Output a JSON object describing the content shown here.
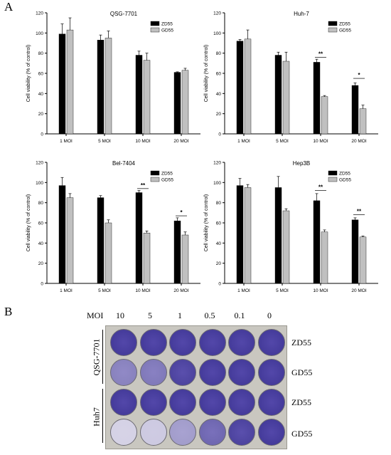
{
  "panels": {
    "a_label": "A",
    "b_label": "B"
  },
  "chart_data": [
    {
      "type": "bar",
      "title": "QSG-7701",
      "ylabel": "Cell viability (% of control)",
      "xlabel": "",
      "categories": [
        "1 MOI",
        "5 MOI",
        "10 MOI",
        "20 MOI"
      ],
      "ylim": [
        0,
        120
      ],
      "yticks": [
        0,
        20,
        40,
        60,
        80,
        100,
        120
      ],
      "legend_position": "top-right",
      "series": [
        {
          "name": "ZD55",
          "color": "#000000",
          "values": [
            99,
            93,
            78,
            61
          ],
          "errors": [
            10,
            5,
            4,
            0.5
          ]
        },
        {
          "name": "GD55",
          "color": "#c0c0c0",
          "values": [
            103,
            95,
            73,
            63
          ],
          "errors": [
            12,
            7,
            7,
            2
          ]
        }
      ],
      "significance": []
    },
    {
      "type": "bar",
      "title": "Huh-7",
      "ylabel": "Cell viability (% of control)",
      "xlabel": "",
      "categories": [
        "1 MOI",
        "5 MOI",
        "10 MOI",
        "20 MOI"
      ],
      "ylim": [
        0,
        120
      ],
      "yticks": [
        0,
        20,
        40,
        60,
        80,
        100,
        120
      ],
      "legend_position": "top-right",
      "series": [
        {
          "name": "ZD55",
          "color": "#000000",
          "values": [
            92,
            78,
            71,
            48
          ],
          "errors": [
            1.5,
            3,
            3,
            2.5
          ]
        },
        {
          "name": "GD55",
          "color": "#c0c0c0",
          "values": [
            94,
            72,
            37,
            25
          ],
          "errors": [
            9,
            9,
            1,
            3.5
          ]
        }
      ],
      "significance": [
        {
          "category": "10 MOI",
          "label": "**",
          "y": 76
        },
        {
          "category": "20 MOI",
          "label": "*",
          "y": 55
        }
      ]
    },
    {
      "type": "bar",
      "title": "Bel-7404",
      "ylabel": "Cell viability (% of control)",
      "xlabel": "",
      "categories": [
        "1 MOI",
        "5 MOI",
        "10 MOI",
        "20 MOI"
      ],
      "ylim": [
        0,
        120
      ],
      "yticks": [
        0,
        20,
        40,
        60,
        80,
        100,
        120
      ],
      "legend_position": "top-right",
      "series": [
        {
          "name": "ZD55",
          "color": "#000000",
          "values": [
            97,
            85,
            90,
            62
          ],
          "errors": [
            8,
            2,
            2,
            3
          ]
        },
        {
          "name": "GD55",
          "color": "#c0c0c0",
          "values": [
            85,
            60,
            50,
            48
          ],
          "errors": [
            4,
            3,
            2,
            3
          ]
        }
      ],
      "significance": [
        {
          "category": "10 MOI",
          "label": "**",
          "y": 94
        },
        {
          "category": "20 MOI",
          "label": "*",
          "y": 67
        }
      ]
    },
    {
      "type": "bar",
      "title": "Hep3B",
      "ylabel": "Cell viability (% of control)",
      "xlabel": "",
      "categories": [
        "1 MOI",
        "5 MOI",
        "10 MOI",
        "20 MOI"
      ],
      "ylim": [
        0,
        120
      ],
      "yticks": [
        0,
        20,
        40,
        60,
        80,
        100,
        120
      ],
      "legend_position": "top-right",
      "series": [
        {
          "name": "ZD55",
          "color": "#000000",
          "values": [
            97,
            95,
            82,
            63
          ],
          "errors": [
            7,
            11,
            7,
            2
          ]
        },
        {
          "name": "GD55",
          "color": "#c0c0c0",
          "values": [
            95,
            72,
            51,
            46
          ],
          "errors": [
            3,
            2,
            2,
            1
          ]
        }
      ],
      "significance": [
        {
          "category": "10 MOI",
          "label": "**",
          "y": 92
        },
        {
          "category": "20 MOI",
          "label": "**",
          "y": 68
        }
      ]
    }
  ],
  "plate_panel": {
    "moi_header": "MOI",
    "moi_values": [
      "10",
      "5",
      "1",
      "0.5",
      "0.1",
      "0"
    ],
    "groups": [
      {
        "cell_line": "QSG-7701",
        "rows": [
          "ZD55",
          "GD55"
        ]
      },
      {
        "cell_line": "Huh7",
        "rows": [
          "ZD55",
          "GD55"
        ]
      }
    ],
    "well_stain_density": [
      [
        0.95,
        0.95,
        0.95,
        0.95,
        0.95,
        0.95
      ],
      [
        0.55,
        0.6,
        0.9,
        0.95,
        0.95,
        0.95
      ],
      [
        0.95,
        0.95,
        0.95,
        0.95,
        0.95,
        0.95
      ],
      [
        0.1,
        0.15,
        0.4,
        0.7,
        0.9,
        0.95
      ]
    ],
    "stain_color": "#4b3fa6"
  }
}
